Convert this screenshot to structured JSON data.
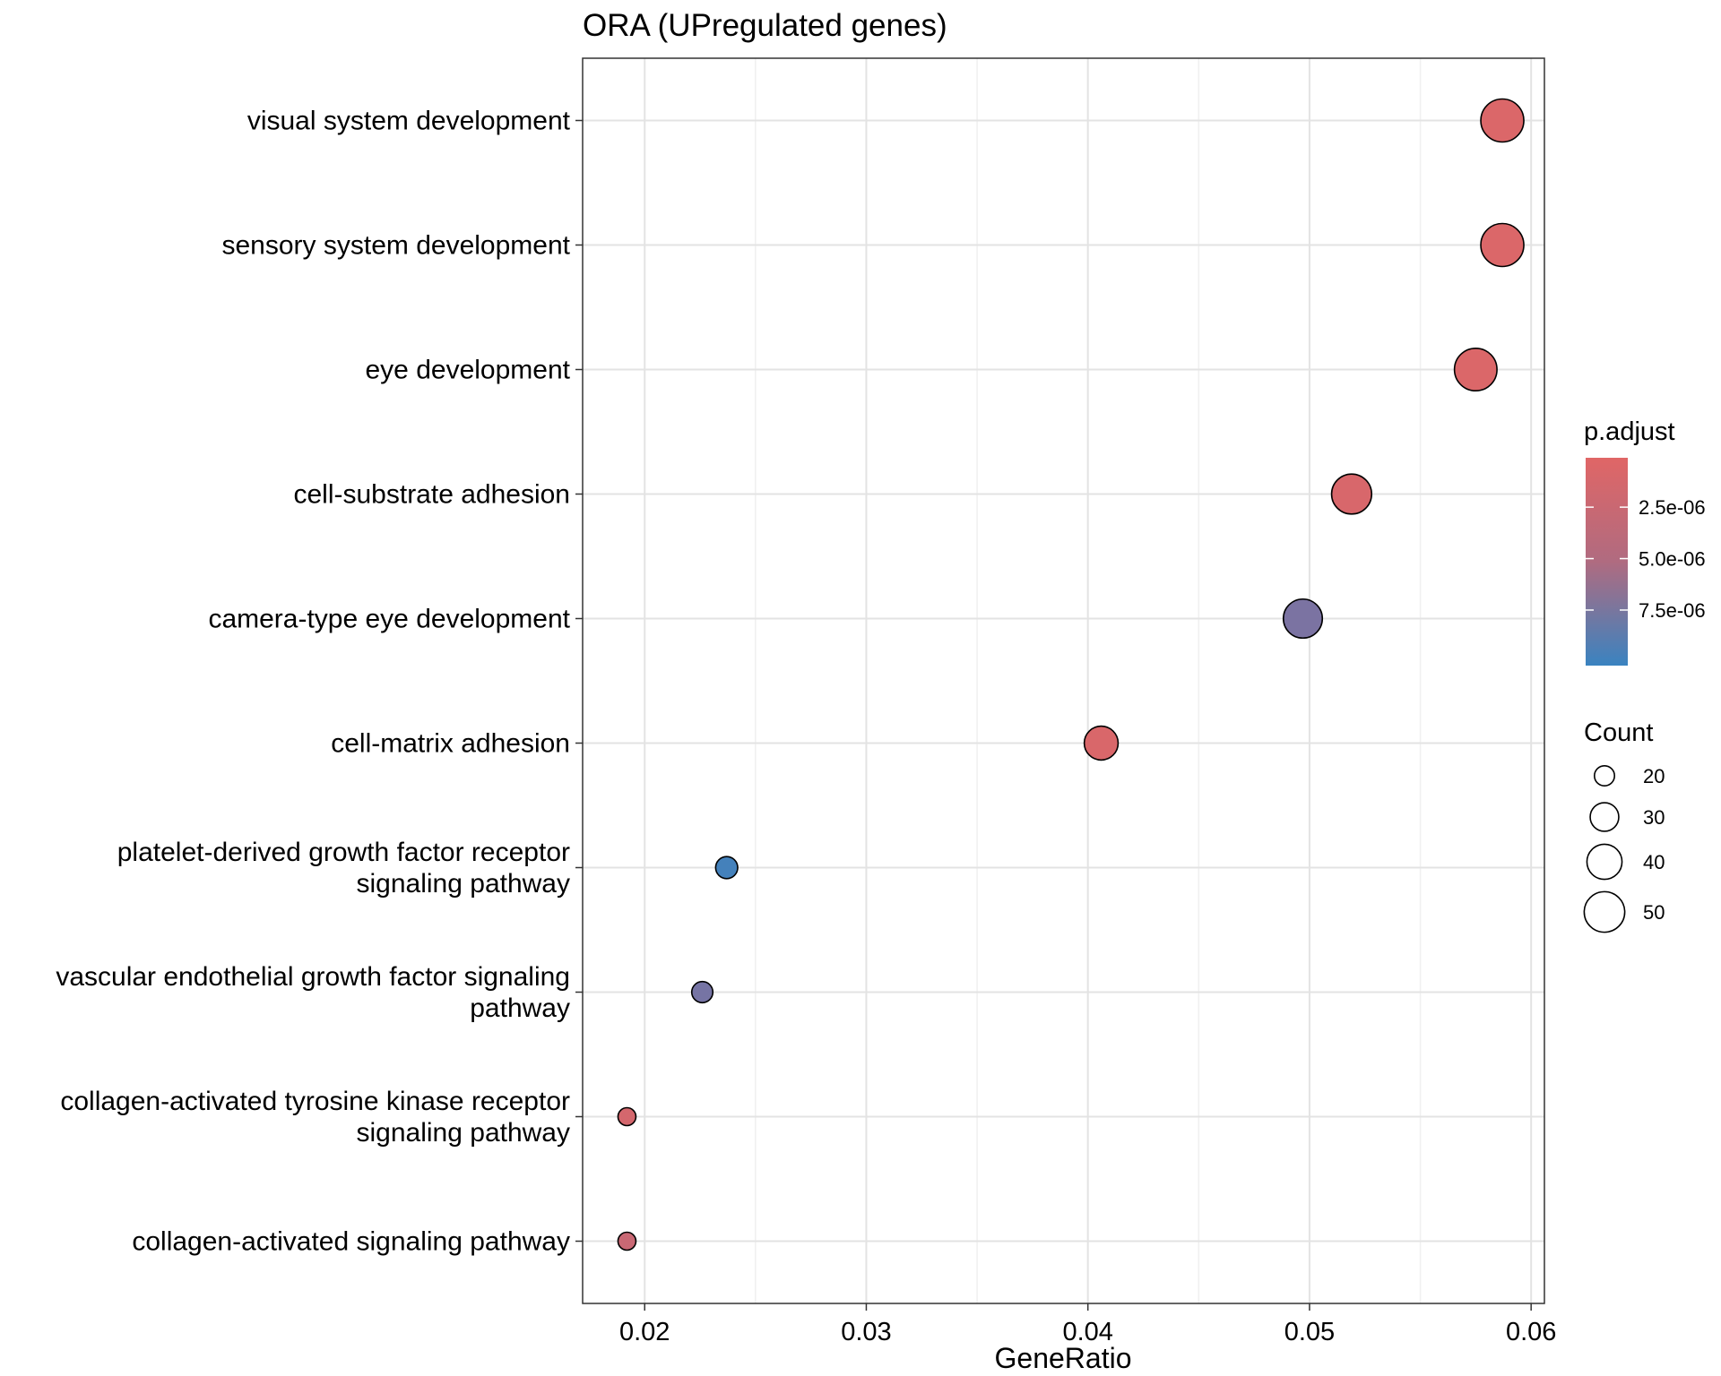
{
  "chart_data": {
    "type": "scatter",
    "title": "ORA (UPregulated genes)",
    "xlabel": "GeneRatio",
    "ylabel": "",
    "xlim": [
      0.0172,
      0.0606
    ],
    "xticks": [
      0.02,
      0.03,
      0.04,
      0.05,
      0.06
    ],
    "xtick_labels": [
      "0.02",
      "0.03",
      "0.04",
      "0.05",
      "0.06"
    ],
    "grid": true,
    "points": [
      {
        "term": "visual system development",
        "lines": [
          "visual system development"
        ],
        "gene_ratio": 0.0587,
        "count": 55,
        "p_adjust": 4e-07
      },
      {
        "term": "sensory system development",
        "lines": [
          "sensory system development"
        ],
        "gene_ratio": 0.0587,
        "count": 55,
        "p_adjust": 4e-07
      },
      {
        "term": "eye development",
        "lines": [
          "eye development"
        ],
        "gene_ratio": 0.0575,
        "count": 54,
        "p_adjust": 4e-07
      },
      {
        "term": "cell-substrate adhesion",
        "lines": [
          "cell-substrate adhesion"
        ],
        "gene_ratio": 0.0519,
        "count": 49,
        "p_adjust": 6e-07
      },
      {
        "term": "camera-type eye development",
        "lines": [
          "camera-type eye development"
        ],
        "gene_ratio": 0.0497,
        "count": 47,
        "p_adjust": 6.2e-06
      },
      {
        "term": "cell-matrix adhesion",
        "lines": [
          "cell-matrix adhesion"
        ],
        "gene_ratio": 0.0406,
        "count": 38,
        "p_adjust": 5e-07
      },
      {
        "term": "platelet-derived growth factor receptor signaling pathway",
        "lines": [
          "platelet-derived growth factor receptor",
          "signaling pathway"
        ],
        "gene_ratio": 0.0237,
        "count": 22,
        "p_adjust": 9.6e-06
      },
      {
        "term": "vascular endothelial growth factor signaling pathway",
        "lines": [
          "vascular endothelial growth factor signaling",
          "pathway"
        ],
        "gene_ratio": 0.0226,
        "count": 21,
        "p_adjust": 6.5e-06
      },
      {
        "term": "collagen-activated tyrosine kinase receptor signaling pathway",
        "lines": [
          "collagen-activated tyrosine kinase receptor",
          "signaling pathway"
        ],
        "gene_ratio": 0.0192,
        "count": 18,
        "p_adjust": 8e-07
      },
      {
        "term": "collagen-activated signaling pathway",
        "lines": [
          "collagen-activated signaling pathway"
        ],
        "gene_ratio": 0.0192,
        "count": 18,
        "p_adjust": 1.5e-06
      }
    ],
    "color_legend": {
      "title": "p.adjust",
      "range": [
        1e-07,
        1.02e-05
      ],
      "low_color": "#e06666",
      "mid_color": "#8c6f9a",
      "high_color": "#3a83c0",
      "breaks": [
        2.5e-06,
        5e-06,
        7.5e-06
      ],
      "labels": [
        "2.5e-06",
        "5.0e-06",
        "7.5e-06"
      ]
    },
    "size_legend": {
      "title": "Count",
      "values": [
        20,
        30,
        40,
        50
      ],
      "labels": [
        "20",
        "30",
        "40",
        "50"
      ]
    }
  }
}
